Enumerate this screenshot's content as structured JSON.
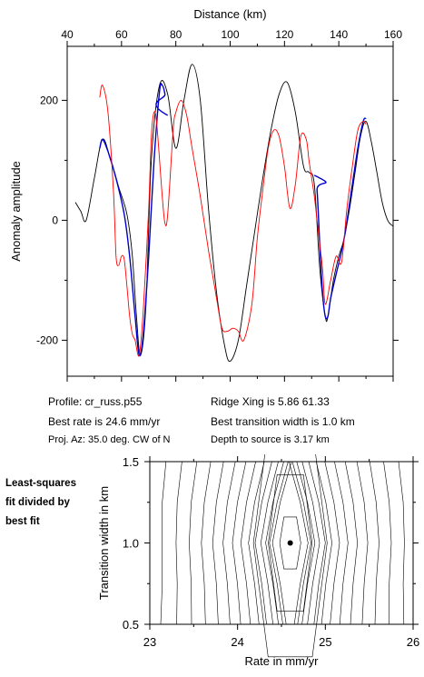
{
  "chart_data": [
    {
      "type": "line",
      "xlabel": "Distance (km)",
      "ylabel": "Anomaly amplitude",
      "xlim": [
        40,
        160
      ],
      "ylim": [
        -260,
        290
      ],
      "xticks": [
        "40",
        "60",
        "80",
        "100",
        "120",
        "140",
        "160"
      ],
      "yticks": [
        "200",
        "0",
        "-200"
      ],
      "ytick_values": [
        200,
        0,
        -200
      ],
      "xtick_values": [
        40,
        60,
        80,
        100,
        120,
        140,
        160
      ],
      "grid": false,
      "series": [
        {
          "color": "#000000",
          "x": [
            43,
            45,
            47,
            50,
            53,
            56,
            59,
            62,
            64,
            65.5,
            67,
            69,
            71,
            74,
            77,
            80,
            83,
            86,
            89,
            92,
            95,
            98,
            100,
            103,
            106,
            109,
            112,
            115,
            118,
            121,
            124,
            127,
            129,
            131,
            133,
            135,
            136,
            138,
            140,
            142,
            144,
            146,
            148,
            150,
            152,
            154,
            156,
            158,
            160
          ],
          "y": [
            30,
            15,
            0,
            70,
            135,
            100,
            55,
            10,
            -60,
            -160,
            -225,
            -140,
            100,
            225,
            210,
            120,
            200,
            260,
            200,
            20,
            -120,
            -210,
            -235,
            -200,
            -110,
            -20,
            70,
            150,
            210,
            230,
            180,
            90,
            80,
            60,
            -80,
            -160,
            -160,
            -100,
            -60,
            -30,
            20,
            80,
            140,
            165,
            130,
            80,
            30,
            0,
            -10
          ]
        },
        {
          "color": "#0000cc",
          "x": [
            52,
            53,
            55,
            58,
            61,
            63,
            65,
            66.5,
            68,
            70,
            72,
            74,
            75,
            76,
            77,
            131,
            132,
            133,
            134,
            135,
            136,
            137,
            139,
            142,
            145,
            147,
            149,
            150
          ],
          "y": [
            120,
            135,
            115,
            70,
            10,
            -60,
            -160,
            -225,
            -190,
            -60,
            100,
            215,
            225,
            210,
            175,
            75,
            50,
            -40,
            -120,
            -160,
            -160,
            -130,
            -90,
            -30,
            60,
            120,
            165,
            170
          ]
        },
        {
          "color": "#ff0000",
          "x": [
            52,
            53,
            55,
            57,
            58,
            59,
            60,
            61,
            62,
            63,
            64,
            65,
            66.5,
            68,
            70,
            71,
            72,
            73,
            75,
            76,
            77,
            79,
            80,
            82,
            84,
            86,
            89,
            92,
            95,
            97,
            99,
            101,
            103,
            105,
            108,
            110,
            112,
            114,
            116,
            118,
            120,
            122,
            124,
            126,
            128,
            129,
            130,
            131,
            132,
            134,
            135,
            137,
            139,
            141,
            143,
            145,
            147,
            149,
            150
          ],
          "y": [
            205,
            225,
            180,
            50,
            -60,
            -75,
            -60,
            -65,
            -110,
            -160,
            -190,
            -200,
            -225,
            -150,
            20,
            140,
            180,
            160,
            40,
            -5,
            10,
            150,
            180,
            200,
            175,
            120,
            40,
            -50,
            -130,
            -180,
            -185,
            -180,
            -185,
            -200,
            -140,
            -30,
            50,
            120,
            150,
            140,
            90,
            20,
            60,
            140,
            135,
            100,
            70,
            40,
            0,
            -80,
            -140,
            -100,
            -60,
            -70,
            20,
            90,
            150,
            165,
            160
          ]
        }
      ]
    },
    {
      "type": "contour",
      "xlabel": "Rate in mm/yr",
      "ylabel": "Transition width in km",
      "xlim": [
        23,
        26
      ],
      "ylim": [
        0.5,
        1.5
      ],
      "xticks": [
        "23",
        "24",
        "25",
        "26"
      ],
      "xtick_values": [
        23,
        24,
        25,
        26
      ],
      "yticks": [
        "1.5",
        "1.0",
        "0.5"
      ],
      "ytick_values": [
        1.5,
        1.0,
        0.5
      ],
      "best_fit": {
        "rate": 24.6,
        "width": 1.0
      }
    }
  ],
  "info": {
    "profile": "Profile: cr_russ.p55",
    "best_rate": "Best rate is 24.6 mm/yr",
    "proj_az": "Proj. Az: 35.0 deg. CW of N",
    "ridge_xing": "Ridge Xing is 5.86 61.33",
    "best_transition": "Best transition width is 1.0 km",
    "depth": "Depth to source is    3.17 km"
  },
  "side_label": [
    "Least-squares",
    "fit divided by",
    "best fit"
  ]
}
